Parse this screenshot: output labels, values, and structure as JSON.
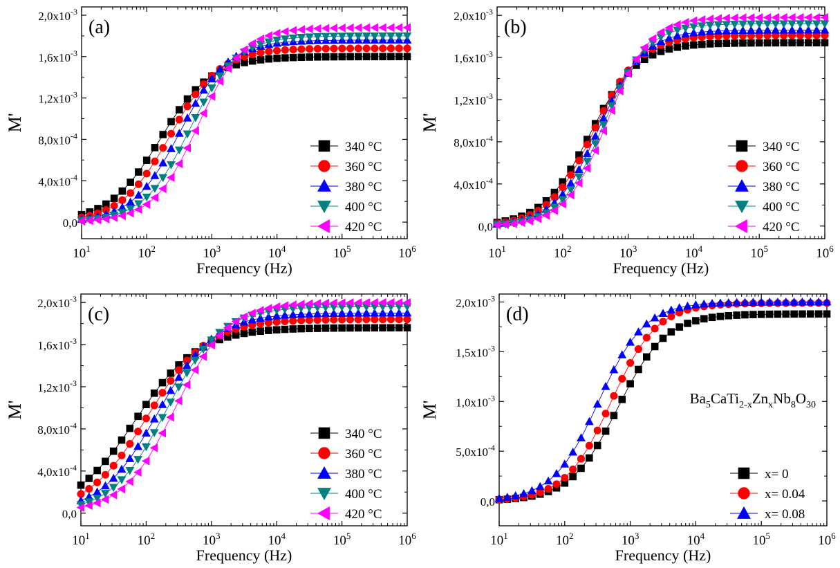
{
  "chart_data": [
    {
      "panel_label": "(a)",
      "type": "scatter",
      "xscale": "log",
      "xlim": [
        10,
        1000000
      ],
      "ylim": [
        -0.00016,
        0.00208
      ],
      "xticks": [
        10,
        100,
        1000,
        10000,
        100000,
        1000000
      ],
      "xtick_labels": [
        {
          "base": "10",
          "exp": "1"
        },
        {
          "base": "10",
          "exp": "2"
        },
        {
          "base": "10",
          "exp": "3"
        },
        {
          "base": "10",
          "exp": "4"
        },
        {
          "base": "10",
          "exp": "5"
        },
        {
          "base": "10",
          "exp": "6"
        }
      ],
      "yticks": [
        0,
        0.0004,
        0.0008,
        0.0012,
        0.0016,
        0.002
      ],
      "ytick_labels": [
        {
          "base": "0,0",
          "exp": ""
        },
        {
          "base": "4,0x10",
          "exp": "-4"
        },
        {
          "base": "8,0x10",
          "exp": "-4"
        },
        {
          "base": "1,2x10",
          "exp": "-3"
        },
        {
          "base": "1,6x10",
          "exp": "-3"
        },
        {
          "base": "2,0x10",
          "exp": "-3"
        }
      ],
      "xlabel": "Frequency (Hz)",
      "ylabel": "M'",
      "legend_position": "lower-right",
      "series": [
        {
          "name": "340 °C",
          "marker": "square",
          "color": "#000000",
          "m_inf": 0.0016,
          "f_c": 160,
          "s": 0.55
        },
        {
          "name": "360 °C",
          "marker": "circle",
          "color": "#ff0000",
          "m_inf": 0.00168,
          "f_c": 230,
          "s": 0.57
        },
        {
          "name": "380 °C",
          "marker": "triangle-up",
          "color": "#0000ff",
          "m_inf": 0.00176,
          "f_c": 330,
          "s": 0.59
        },
        {
          "name": "400 °C",
          "marker": "triangle-down",
          "color": "#008080",
          "m_inf": 0.0018,
          "f_c": 460,
          "s": 0.61
        },
        {
          "name": "420 °C",
          "marker": "triangle-left",
          "color": "#ff00ff",
          "m_inf": 0.00188,
          "f_c": 620,
          "s": 0.63
        }
      ]
    },
    {
      "panel_label": "(b)",
      "type": "scatter",
      "xscale": "log",
      "xlim": [
        10,
        1000000
      ],
      "ylim": [
        -0.00012,
        0.00208
      ],
      "xticks": [
        10,
        100,
        1000,
        10000,
        100000,
        1000000
      ],
      "xtick_labels": [
        {
          "base": "10",
          "exp": "1"
        },
        {
          "base": "10",
          "exp": "2"
        },
        {
          "base": "10",
          "exp": "3"
        },
        {
          "base": "10",
          "exp": "4"
        },
        {
          "base": "10",
          "exp": "5"
        },
        {
          "base": "10",
          "exp": "6"
        }
      ],
      "yticks": [
        0,
        0.0004,
        0.0008,
        0.0012,
        0.0016,
        0.002
      ],
      "ytick_labels": [
        {
          "base": "0,0",
          "exp": ""
        },
        {
          "base": "4,0x10",
          "exp": "-4"
        },
        {
          "base": "8,0x10",
          "exp": "-4"
        },
        {
          "base": "1,2x10",
          "exp": "-3"
        },
        {
          "base": "1,6x10",
          "exp": "-3"
        },
        {
          "base": "2,0x10",
          "exp": "-3"
        }
      ],
      "xlabel": "Frequency (Hz)",
      "ylabel": "M'",
      "legend_position": "lower-right",
      "series": [
        {
          "name": "340 °C",
          "marker": "square",
          "color": "#000000",
          "m_inf": 0.00174,
          "f_c": 260,
          "s": 0.6
        },
        {
          "name": "360 °C",
          "marker": "circle",
          "color": "#ff0000",
          "m_inf": 0.00181,
          "f_c": 300,
          "s": 0.62
        },
        {
          "name": "380 °C",
          "marker": "triangle-up",
          "color": "#0000ff",
          "m_inf": 0.00186,
          "f_c": 360,
          "s": 0.64
        },
        {
          "name": "400 °C",
          "marker": "triangle-down",
          "color": "#008080",
          "m_inf": 0.00192,
          "f_c": 420,
          "s": 0.66
        },
        {
          "name": "420 °C",
          "marker": "triangle-left",
          "color": "#ff00ff",
          "m_inf": 0.00198,
          "f_c": 480,
          "s": 0.68
        }
      ]
    },
    {
      "panel_label": "(c)",
      "type": "scatter",
      "xscale": "log",
      "xlim": [
        10,
        1000000
      ],
      "ylim": [
        -0.00012,
        0.00208
      ],
      "xticks": [
        10,
        100,
        1000,
        10000,
        100000,
        1000000
      ],
      "xtick_labels": [
        {
          "base": "10",
          "exp": "1"
        },
        {
          "base": "10",
          "exp": "2"
        },
        {
          "base": "10",
          "exp": "3"
        },
        {
          "base": "10",
          "exp": "4"
        },
        {
          "base": "10",
          "exp": "5"
        },
        {
          "base": "10",
          "exp": "6"
        }
      ],
      "yticks": [
        0,
        0.0004,
        0.0008,
        0.0012,
        0.0016,
        0.002
      ],
      "ytick_labels": [
        {
          "base": "0,0",
          "exp": ""
        },
        {
          "base": "4,0x10",
          "exp": "-4"
        },
        {
          "base": "8,0x10",
          "exp": "-4"
        },
        {
          "base": "1,2x10",
          "exp": "-3"
        },
        {
          "base": "1,6x10",
          "exp": "-3"
        },
        {
          "base": "2,0x10",
          "exp": "-3"
        }
      ],
      "xlabel": "Frequency (Hz)",
      "ylabel": "M'",
      "legend_position": "lower-right",
      "series": [
        {
          "name": "340 °C",
          "marker": "square",
          "color": "#000000",
          "m_inf": 0.00176,
          "f_c": 68,
          "s": 0.45
        },
        {
          "name": "360 °C",
          "marker": "circle",
          "color": "#ff0000",
          "m_inf": 0.00184,
          "f_c": 105,
          "s": 0.47
        },
        {
          "name": "380 °C",
          "marker": "triangle-up",
          "color": "#0000ff",
          "m_inf": 0.0019,
          "f_c": 150,
          "s": 0.5
        },
        {
          "name": "400 °C",
          "marker": "triangle-down",
          "color": "#008080",
          "m_inf": 0.00196,
          "f_c": 205,
          "s": 0.52
        },
        {
          "name": "420 °C",
          "marker": "triangle-left",
          "color": "#ff00ff",
          "m_inf": 0.002,
          "f_c": 280,
          "s": 0.54
        }
      ]
    },
    {
      "panel_label": "(d)",
      "type": "scatter",
      "xscale": "log",
      "xlim": [
        10,
        1000000
      ],
      "ylim": [
        -0.00025,
        0.00208
      ],
      "xticks": [
        10,
        100,
        1000,
        10000,
        100000,
        1000000
      ],
      "xtick_labels": [
        {
          "base": "10",
          "exp": "1"
        },
        {
          "base": "10",
          "exp": "2"
        },
        {
          "base": "10",
          "exp": "3"
        },
        {
          "base": "10",
          "exp": "4"
        },
        {
          "base": "10",
          "exp": "5"
        },
        {
          "base": "10",
          "exp": "6"
        }
      ],
      "yticks": [
        0,
        0.0005,
        0.001,
        0.0015,
        0.002
      ],
      "ytick_labels": [
        {
          "base": "0,0",
          "exp": ""
        },
        {
          "base": "5,0x10",
          "exp": "-4"
        },
        {
          "base": "1,0x10",
          "exp": "-3"
        },
        {
          "base": "1,5x10",
          "exp": "-3"
        },
        {
          "base": "2,0x10",
          "exp": "-3"
        }
      ],
      "xlabel": "Frequency (Hz)",
      "ylabel": "M'",
      "legend_position": "lower-right",
      "annotation": [
        {
          "t": "Ba",
          "sub": false
        },
        {
          "t": "5",
          "sub": true
        },
        {
          "t": "CaTi",
          "sub": false
        },
        {
          "t": "2-x",
          "sub": true
        },
        {
          "t": "Zn",
          "sub": false
        },
        {
          "t": "x",
          "sub": true
        },
        {
          "t": "Nb",
          "sub": false
        },
        {
          "t": "8",
          "sub": true
        },
        {
          "t": "O",
          "sub": false
        },
        {
          "t": "30",
          "sub": true
        }
      ],
      "series": [
        {
          "name": "x= 0",
          "marker": "square",
          "color": "#000000",
          "m_inf": 0.00188,
          "f_c": 650,
          "s": 0.6
        },
        {
          "name": "x= 0.04",
          "marker": "circle",
          "color": "#ff0000",
          "m_inf": 0.00199,
          "f_c": 510,
          "s": 0.62
        },
        {
          "name": "x= 0.08",
          "marker": "triangle-up",
          "color": "#0000ff",
          "m_inf": 0.002,
          "f_c": 330,
          "s": 0.62
        }
      ]
    }
  ]
}
